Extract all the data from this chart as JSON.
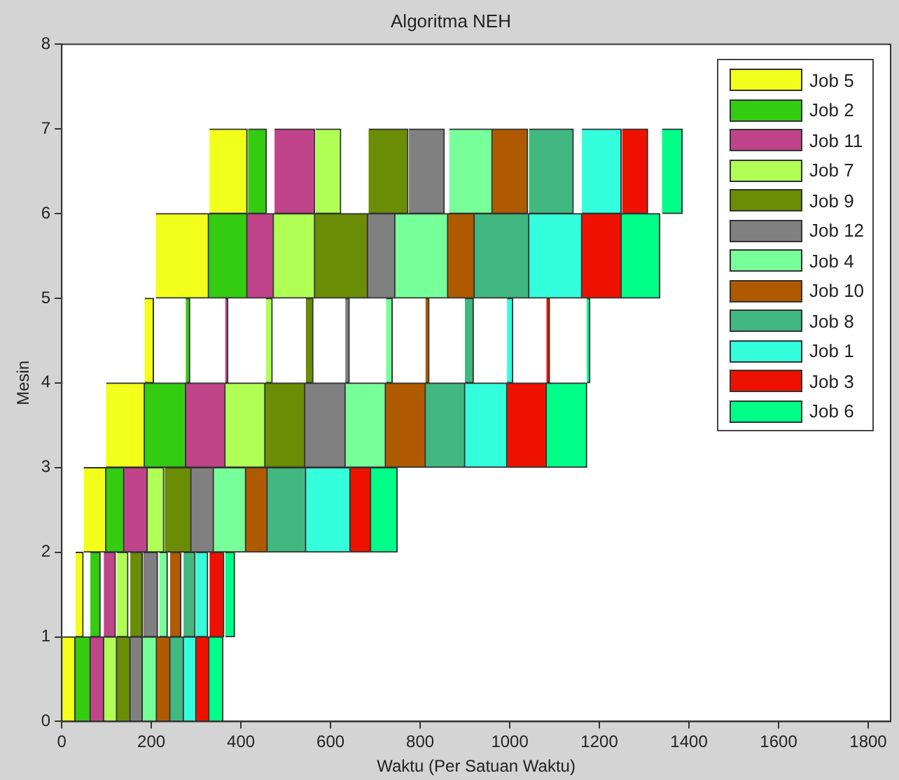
{
  "chart_data": {
    "type": "bar",
    "orientation": "horizontal",
    "title": "Algoritma NEH",
    "xlabel": "Waktu (Per Satuan Waktu)",
    "ylabel": "Mesin",
    "x": [
      0.5,
      1.5,
      2.5,
      3.5,
      4.5,
      5.5,
      6.5
    ],
    "xlim": [
      0,
      1850
    ],
    "xticks": [
      0,
      200,
      400,
      600,
      800,
      1000,
      1200,
      1400,
      1600,
      1800
    ],
    "ylim": [
      0,
      8
    ],
    "yticks": [
      0,
      1,
      2,
      3,
      4,
      5,
      6,
      7,
      8
    ],
    "grid": false,
    "legend": "top right",
    "series": [
      {
        "name": "Job 5",
        "color": "#f2ff1a",
        "base": [
          0,
          31,
          49,
          99,
          185,
          210,
          330
        ],
        "values": [
          30,
          17,
          50,
          86,
          20,
          118,
          84
        ]
      },
      {
        "name": "Job 2",
        "color": "#33cc11",
        "base": [
          30,
          64,
          99,
          185,
          277,
          328,
          416
        ],
        "values": [
          34,
          22,
          40,
          92,
          9,
          86,
          41
        ]
      },
      {
        "name": "Job 11",
        "color": "#c0448a",
        "base": [
          64,
          94,
          139,
          277,
          365,
          414,
          475
        ],
        "values": [
          30,
          26,
          52,
          88,
          6,
          59,
          90
        ]
      },
      {
        "name": "Job 7",
        "color": "#b0ff55",
        "base": [
          94,
          123,
          191,
          365,
          456,
          473,
          567
        ],
        "values": [
          29,
          25,
          37,
          89,
          14,
          92,
          56
        ]
      },
      {
        "name": "Job 9",
        "color": "#6b8c05",
        "base": [
          123,
          153,
          230,
          454,
          545,
          565,
          685
        ],
        "values": [
          30,
          27,
          59,
          89,
          16,
          118,
          88
        ]
      },
      {
        "name": "Job 12",
        "color": "#808080",
        "base": [
          153,
          182,
          289,
          543,
          633,
          683,
          775
        ],
        "values": [
          27,
          32,
          50,
          90,
          9,
          61,
          79
        ]
      },
      {
        "name": "Job 4",
        "color": "#77ff99",
        "base": [
          180,
          218,
          339,
          633,
          724,
          744,
          865
        ],
        "values": [
          32,
          18,
          72,
          90,
          14,
          118,
          96
        ]
      },
      {
        "name": "Job 10",
        "color": "#b05a00",
        "base": [
          212,
          242,
          411,
          723,
          812,
          862,
          961
        ],
        "values": [
          30,
          24,
          48,
          89,
          8,
          59,
          79
        ]
      },
      {
        "name": "Job 8",
        "color": "#40b880",
        "base": [
          242,
          272,
          459,
          812,
          900,
          921,
          1043
        ],
        "values": [
          30,
          26,
          86,
          88,
          19,
          122,
          99
        ]
      },
      {
        "name": "Job 1",
        "color": "#33ffdd",
        "base": [
          272,
          300,
          545,
          900,
          994,
          1043,
          1161
        ],
        "values": [
          28,
          26,
          99,
          94,
          13,
          118,
          88
        ]
      },
      {
        "name": "Job 3",
        "color": "#ee1100",
        "base": [
          300,
          330,
          644,
          994,
          1082,
          1161,
          1251
        ],
        "values": [
          29,
          32,
          46,
          88,
          7,
          88,
          57
        ]
      },
      {
        "name": "Job 6",
        "color": "#00ff88",
        "base": [
          329,
          365,
          690,
          1082,
          1172,
          1249,
          1340
        ],
        "values": [
          31,
          21,
          59,
          90,
          7,
          86,
          45
        ]
      }
    ]
  }
}
